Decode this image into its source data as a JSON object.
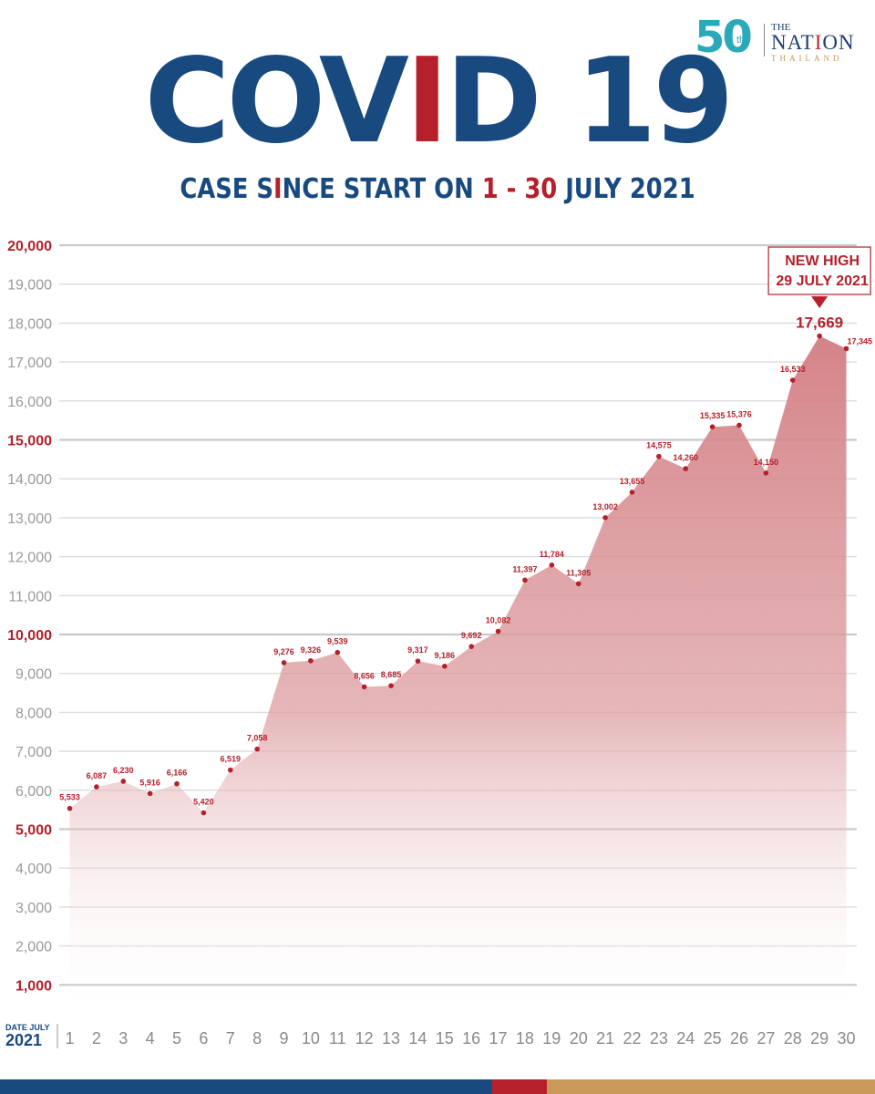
{
  "logo": {
    "number": "50",
    "suffix": "th",
    "the": "THE",
    "nation": [
      "NAT",
      "I",
      "ON"
    ],
    "thailand": "THAILAND"
  },
  "title": {
    "part1": "COV",
    "part2": "I",
    "part3": "D 19"
  },
  "subtitle": {
    "part1": "CASE S",
    "part2": "I",
    "part3": "NCE START ON ",
    "part4": "1 - 30",
    "part5": " JULY 2021"
  },
  "colors": {
    "brand_blue": "#184a80",
    "brand_red": "#b5202a",
    "area_fill": "#d98c8f",
    "gold": "#c99a5a"
  },
  "chart_data": {
    "type": "area",
    "x": [
      1,
      2,
      3,
      4,
      5,
      6,
      7,
      8,
      9,
      10,
      11,
      12,
      13,
      14,
      15,
      16,
      17,
      18,
      19,
      20,
      21,
      22,
      23,
      24,
      25,
      26,
      27,
      28,
      29,
      30
    ],
    "x_tick_labels": [
      "1",
      "2",
      "3",
      "4",
      "5",
      "6",
      "7",
      "8",
      "9",
      "10",
      "11",
      "12",
      "13",
      "14",
      "15",
      "16",
      "17",
      "18",
      "19",
      "20",
      "21",
      "22",
      "23",
      "24",
      "25",
      "26",
      "27",
      "28",
      "29",
      "30"
    ],
    "values": [
      5533,
      6087,
      6230,
      5916,
      6166,
      5420,
      6519,
      7058,
      9276,
      9326,
      9539,
      8656,
      8685,
      9317,
      9186,
      9692,
      10082,
      11397,
      11784,
      11305,
      13002,
      13655,
      14575,
      14260,
      15335,
      15376,
      14150,
      16533,
      17669,
      17345
    ],
    "data_labels": [
      "5,533",
      "6,087",
      "6,230",
      "5,916",
      "6,166",
      "5,420",
      "6,519",
      "7,058",
      "9,276",
      "9,326",
      "9,539",
      "8,656",
      "8,685",
      "9,317",
      "9,186",
      "9,692",
      "10,082",
      "11,397",
      "11,784",
      "11,305",
      "13,002",
      "13,655",
      "14,575",
      "14,260",
      "15,335",
      "15,376",
      "14,150",
      "16,533",
      "17,669",
      "17,345"
    ],
    "ylim": [
      0,
      20000
    ],
    "y_ticks": [
      1000,
      2000,
      3000,
      4000,
      5000,
      6000,
      7000,
      8000,
      9000,
      10000,
      11000,
      12000,
      13000,
      14000,
      15000,
      16000,
      17000,
      18000,
      19000,
      20000
    ],
    "y_tick_labels": [
      "1,000",
      "2,000",
      "3,000",
      "4,000",
      "5,000",
      "6,000",
      "7,000",
      "8,000",
      "9,000",
      "10,000",
      "11,000",
      "12,000",
      "13,000",
      "14,000",
      "15,000",
      "16,000",
      "17,000",
      "18,000",
      "19,000",
      "20,000"
    ],
    "y_emphasized_ticks": [
      1000,
      5000,
      10000,
      15000,
      20000
    ],
    "x_axis_label_top": "DATE JULY",
    "x_axis_label_bottom": "2021",
    "grid": true,
    "annotation": {
      "x": 29,
      "line1": "NEW HIGH",
      "line2": "29 JULY 2021"
    }
  },
  "bottom_bar": [
    {
      "color": "#184a80",
      "fraction": 0.5625
    },
    {
      "color": "#b5202a",
      "fraction": 0.0625
    },
    {
      "color": "#c99a5a",
      "fraction": 0.375
    }
  ]
}
